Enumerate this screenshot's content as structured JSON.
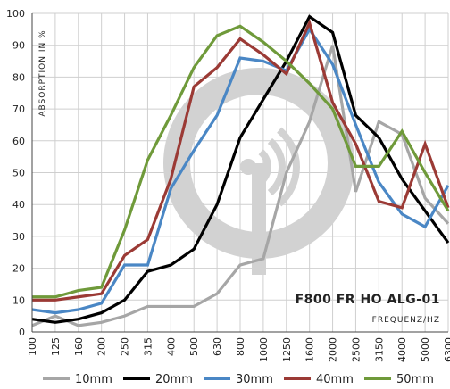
{
  "chart_data": {
    "type": "line",
    "title": "F800 FR HO ALG-01",
    "xlabel": "FREQUENZ/HZ",
    "ylabel": "ABSORPTION IN %",
    "ylim": [
      0,
      100
    ],
    "yticks": [
      0,
      10,
      20,
      30,
      40,
      50,
      60,
      70,
      80,
      90,
      100
    ],
    "grid": true,
    "legend_position": "bottom",
    "categories": [
      "100",
      "125",
      "160",
      "200",
      "250",
      "315",
      "400",
      "500",
      "630",
      "800",
      "1000",
      "1250",
      "1600",
      "2000",
      "2500",
      "3150",
      "4000",
      "5000",
      "6300"
    ],
    "series": [
      {
        "name": "10mm",
        "color": "#a6a6a6",
        "values": [
          2,
          5,
          2,
          3,
          5,
          8,
          8,
          8,
          12,
          21,
          23,
          50,
          66,
          90,
          44,
          66,
          62,
          42,
          34
        ]
      },
      {
        "name": "20mm",
        "color": "#000000",
        "values": [
          4,
          3,
          4,
          6,
          10,
          19,
          21,
          26,
          40,
          61,
          73,
          85,
          99,
          94,
          68,
          61,
          48,
          38,
          28
        ]
      },
      {
        "name": "30mm",
        "color": "#4a87c5",
        "values": [
          7,
          6,
          7,
          9,
          21,
          21,
          45,
          57,
          68,
          86,
          85,
          82,
          95,
          84,
          65,
          47,
          37,
          33,
          46
        ]
      },
      {
        "name": "40mm",
        "color": "#9b3a35",
        "values": [
          10,
          10,
          11,
          12,
          24,
          29,
          48,
          77,
          83,
          92,
          87,
          81,
          97,
          72,
          59,
          41,
          39,
          59,
          39
        ]
      },
      {
        "name": "50mm",
        "color": "#6f9a3a",
        "values": [
          11,
          11,
          13,
          14,
          32,
          54,
          68,
          83,
          93,
          96,
          91,
          85,
          78,
          70,
          52,
          52,
          63,
          50,
          38
        ]
      }
    ]
  }
}
